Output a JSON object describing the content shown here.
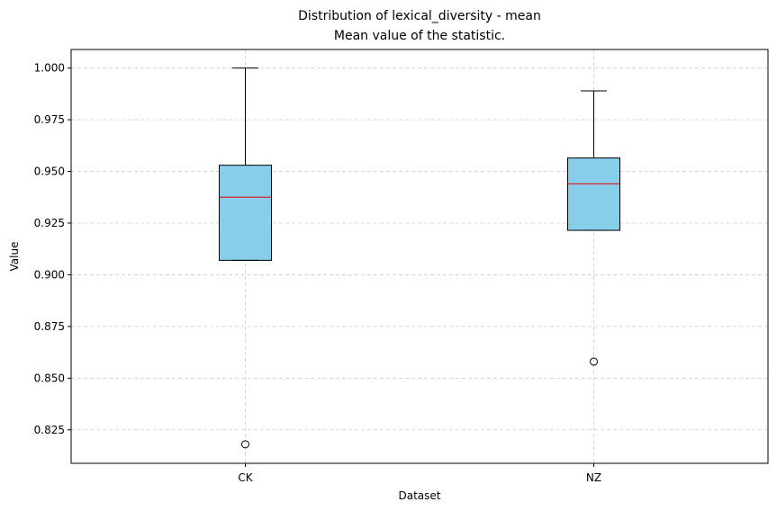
{
  "chart_data": {
    "type": "boxplot",
    "title": "Distribution of lexical_diversity - mean",
    "subtitle": "Mean value of the statistic.",
    "xlabel": "Dataset",
    "ylabel": "Value",
    "categories": [
      "CK",
      "NZ"
    ],
    "boxes": [
      {
        "category": "CK",
        "whisker_low": 0.907,
        "q1": 0.907,
        "median": 0.9375,
        "q3": 0.953,
        "whisker_high": 1.0,
        "outliers": [
          0.818
        ]
      },
      {
        "category": "NZ",
        "whisker_low": 0.9215,
        "q1": 0.9215,
        "median": 0.944,
        "q3": 0.9565,
        "whisker_high": 0.989,
        "outliers": [
          0.858
        ]
      }
    ],
    "yticks": [
      0.825,
      0.85,
      0.875,
      0.9,
      0.925,
      0.95,
      0.975,
      1.0
    ],
    "ytick_labels": [
      "0.825",
      "0.850",
      "0.875",
      "0.900",
      "0.925",
      "0.950",
      "0.975",
      "1.000"
    ],
    "ylim": [
      0.8088,
      1.009
    ],
    "grid": true,
    "colors": {
      "box_fill": "#87CEEB",
      "median": "#d62728",
      "edge": "#000000",
      "grid": "#cccccc"
    }
  }
}
